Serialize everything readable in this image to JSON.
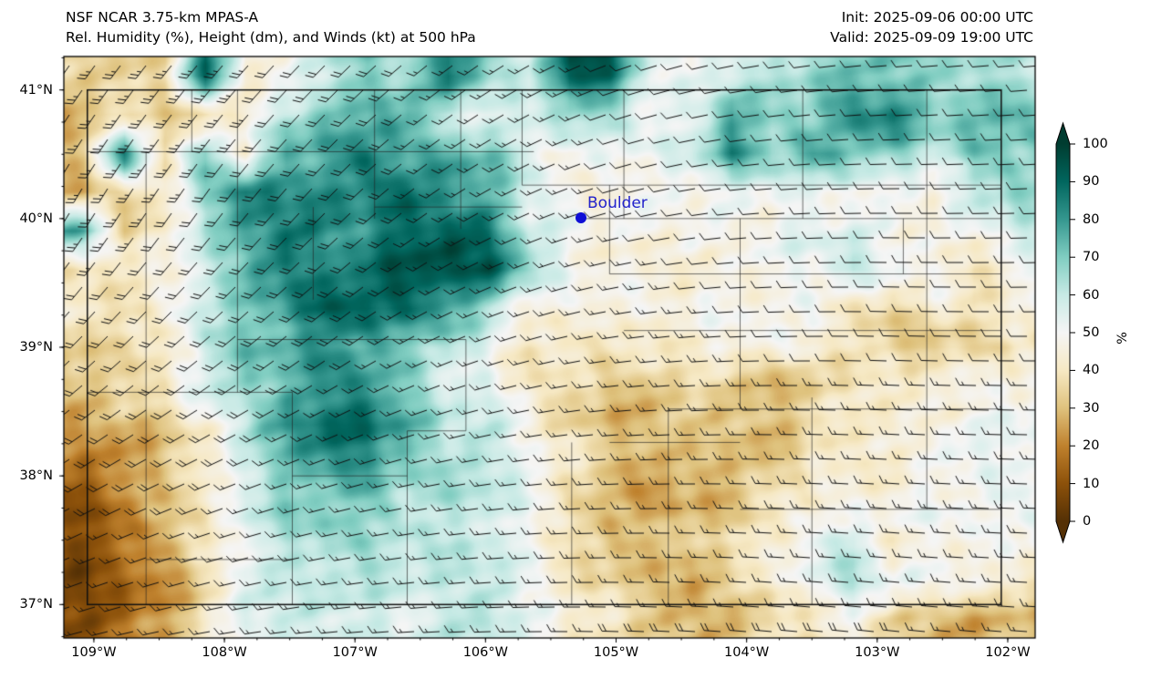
{
  "header": {
    "title_line1": "NSF NCAR 3.75-km MPAS-A",
    "title_line2": "Rel. Humidity (%), Height (dm), and Winds (kt) at 500 hPa",
    "init_label": "Init: 2025-09-06 00:00 UTC",
    "valid_label": "Valid: 2025-09-09 19:00 UTC"
  },
  "chart_data": {
    "type": "heatmap",
    "field": "relative humidity (%) at 500 hPa with wind barbs (kt)",
    "region": "Colorado",
    "lon_w_range": [
      109.23,
      101.79
    ],
    "lat_range": [
      36.74,
      41.26
    ],
    "x_ticks": [
      {
        "label": "109°W",
        "lon_w": 109
      },
      {
        "label": "108°W",
        "lon_w": 108
      },
      {
        "label": "107°W",
        "lon_w": 107
      },
      {
        "label": "106°W",
        "lon_w": 106
      },
      {
        "label": "105°W",
        "lon_w": 105
      },
      {
        "label": "104°W",
        "lon_w": 104
      },
      {
        "label": "103°W",
        "lon_w": 103
      },
      {
        "label": "102°W",
        "lon_w": 102
      }
    ],
    "y_ticks": [
      {
        "label": "41°N",
        "lat": 41
      },
      {
        "label": "40°N",
        "lat": 40
      },
      {
        "label": "39°N",
        "lat": 39
      },
      {
        "label": "38°N",
        "lat": 38
      },
      {
        "label": "37°N",
        "lat": 37
      }
    ],
    "colorbar": {
      "label": "%",
      "ticks": [
        0,
        10,
        20,
        30,
        40,
        50,
        60,
        70,
        80,
        90,
        100
      ],
      "range": [
        0,
        100
      ],
      "colormap": "BrBG",
      "extend": "both",
      "stops": [
        "#543005",
        "#8c510a",
        "#bf812d",
        "#dfc27d",
        "#f6e8c3",
        "#f5f5f5",
        "#c7eae5",
        "#80cdc1",
        "#35978f",
        "#01665e",
        "#003c30"
      ]
    },
    "marker": {
      "label": "Boulder",
      "lon_w": 105.27,
      "lat": 40.01,
      "color": "#0f0fd6"
    },
    "rh_grid": {
      "cols": 24,
      "rows": 15,
      "values": [
        [
          34,
          32,
          36,
          88,
          46,
          52,
          62,
          70,
          66,
          84,
          66,
          56,
          94,
          90,
          56,
          50,
          56,
          60,
          66,
          70,
          74,
          70,
          66,
          64
        ],
        [
          30,
          36,
          34,
          36,
          44,
          60,
          74,
          70,
          76,
          56,
          50,
          55,
          70,
          66,
          50,
          56,
          78,
          66,
          70,
          84,
          84,
          70,
          74,
          70
        ],
        [
          30,
          84,
          36,
          72,
          46,
          78,
          76,
          84,
          70,
          76,
          74,
          56,
          50,
          55,
          50,
          56,
          80,
          66,
          78,
          74,
          70,
          60,
          70,
          66
        ],
        [
          30,
          36,
          42,
          70,
          84,
          80,
          84,
          80,
          88,
          80,
          74,
          56,
          50,
          46,
          50,
          50,
          54,
          50,
          54,
          50,
          46,
          46,
          60,
          64
        ],
        [
          78,
          36,
          40,
          64,
          74,
          84,
          80,
          84,
          90,
          94,
          90,
          56,
          50,
          46,
          46,
          50,
          50,
          50,
          54,
          54,
          46,
          42,
          50,
          60
        ],
        [
          40,
          44,
          46,
          60,
          70,
          84,
          80,
          86,
          94,
          98,
          94,
          68,
          50,
          46,
          43,
          46,
          48,
          50,
          52,
          64,
          46,
          48,
          36,
          46
        ],
        [
          40,
          40,
          46,
          60,
          70,
          80,
          90,
          94,
          90,
          80,
          66,
          46,
          42,
          45,
          45,
          46,
          48,
          50,
          50,
          38,
          35,
          44,
          36,
          50
        ],
        [
          32,
          40,
          42,
          60,
          70,
          74,
          80,
          76,
          70,
          66,
          50,
          39,
          40,
          35,
          42,
          45,
          48,
          50,
          48,
          38,
          32,
          30,
          34,
          40
        ],
        [
          28,
          38,
          40,
          58,
          68,
          74,
          80,
          84,
          72,
          52,
          56,
          42,
          35,
          32,
          30,
          34,
          30,
          28,
          30,
          40,
          45,
          45,
          48,
          50
        ],
        [
          22,
          28,
          32,
          45,
          64,
          84,
          88,
          88,
          74,
          60,
          62,
          50,
          35,
          30,
          28,
          30,
          28,
          30,
          38,
          45,
          45,
          48,
          48,
          52
        ],
        [
          15,
          22,
          30,
          40,
          60,
          74,
          80,
          84,
          70,
          62,
          64,
          52,
          42,
          32,
          28,
          25,
          28,
          30,
          38,
          42,
          45,
          50,
          52,
          55
        ],
        [
          12,
          18,
          28,
          38,
          58,
          68,
          72,
          70,
          60,
          62,
          60,
          50,
          40,
          30,
          26,
          28,
          30,
          38,
          42,
          45,
          48,
          50,
          52,
          50
        ],
        [
          8,
          15,
          25,
          38,
          55,
          62,
          68,
          68,
          62,
          58,
          60,
          48,
          40,
          32,
          34,
          30,
          38,
          40,
          48,
          58,
          45,
          48,
          50,
          52
        ],
        [
          8,
          12,
          22,
          35,
          55,
          60,
          62,
          60,
          58,
          60,
          58,
          50,
          42,
          35,
          30,
          28,
          38,
          40,
          55,
          64,
          50,
          52,
          50,
          38
        ],
        [
          10,
          15,
          25,
          38,
          55,
          58,
          60,
          58,
          55,
          58,
          60,
          50,
          45,
          40,
          35,
          30,
          30,
          35,
          40,
          45,
          35,
          30,
          28,
          30
        ]
      ]
    },
    "wind": {
      "units": "kt",
      "description": "barbs from SW in west, veering to W in east and south",
      "dir_from_deg_grid": [
        [
          215,
          220,
          225,
          235,
          250,
          260,
          265,
          265
        ],
        [
          210,
          215,
          225,
          240,
          255,
          265,
          270,
          268
        ],
        [
          225,
          230,
          235,
          250,
          262,
          268,
          272,
          270
        ],
        [
          240,
          248,
          255,
          262,
          268,
          272,
          274,
          272
        ],
        [
          255,
          260,
          265,
          268,
          272,
          275,
          276,
          274
        ]
      ],
      "speed_kt_grid": [
        [
          25,
          25,
          20,
          15,
          12,
          10,
          10,
          12
        ],
        [
          25,
          22,
          20,
          15,
          12,
          10,
          10,
          10
        ],
        [
          20,
          20,
          18,
          15,
          15,
          12,
          12,
          12
        ],
        [
          18,
          18,
          15,
          15,
          15,
          15,
          15,
          15
        ],
        [
          15,
          15,
          15,
          15,
          18,
          18,
          18,
          15
        ]
      ]
    },
    "boundaries": {
      "state_outline": {
        "lon_w_min": 102.05,
        "lon_w_max": 109.05,
        "lat_min": 37.0,
        "lat_max": 41.0
      },
      "county_segments": [
        [
          108.6,
          37.0,
          108.6,
          40.52
        ],
        [
          107.9,
          38.65,
          107.9,
          41.0
        ],
        [
          107.48,
          37.0,
          107.48,
          38.65
        ],
        [
          106.85,
          40.0,
          106.85,
          41.0
        ],
        [
          106.6,
          37.0,
          106.6,
          38.35
        ],
        [
          106.19,
          39.92,
          106.19,
          41.0
        ],
        [
          105.72,
          40.26,
          105.72,
          41.0
        ],
        [
          105.05,
          39.57,
          105.05,
          40.26
        ],
        [
          104.94,
          40.0,
          104.94,
          41.0
        ],
        [
          104.6,
          37.0,
          104.6,
          38.52
        ],
        [
          104.05,
          38.52,
          104.05,
          40.0
        ],
        [
          103.57,
          40.0,
          103.57,
          41.0
        ],
        [
          103.5,
          37.0,
          103.5,
          38.61
        ],
        [
          102.62,
          37.74,
          102.62,
          41.0
        ],
        [
          102.8,
          39.57,
          102.8,
          40.0
        ],
        [
          108.25,
          40.52,
          108.25,
          41.0
        ],
        [
          107.32,
          39.37,
          107.32,
          40.09
        ],
        [
          106.15,
          38.35,
          106.15,
          39.06
        ],
        [
          105.34,
          37.0,
          105.34,
          38.26
        ],
        [
          109.05,
          40.52,
          105.63,
          40.52
        ],
        [
          105.72,
          40.26,
          102.05,
          40.26
        ],
        [
          105.3,
          40.0,
          102.05,
          40.0
        ],
        [
          105.05,
          39.57,
          102.05,
          39.57
        ],
        [
          104.94,
          39.13,
          102.05,
          39.13
        ],
        [
          109.05,
          38.65,
          107.48,
          38.65
        ],
        [
          104.6,
          38.52,
          102.05,
          38.52
        ],
        [
          105.05,
          38.26,
          104.05,
          38.26
        ],
        [
          107.48,
          38.0,
          106.6,
          38.0
        ],
        [
          104.05,
          37.74,
          102.05,
          37.74
        ],
        [
          108.6,
          37.35,
          107.48,
          37.35
        ],
        [
          106.6,
          38.35,
          106.15,
          38.35
        ],
        [
          107.9,
          39.06,
          106.15,
          39.06
        ],
        [
          106.85,
          40.09,
          105.72,
          40.09
        ]
      ]
    }
  }
}
